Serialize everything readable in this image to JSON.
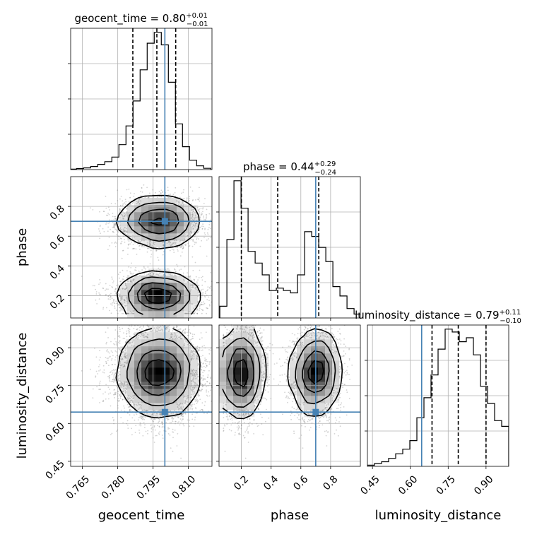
{
  "chart_data": {
    "type": "corner",
    "parameters": [
      "geocent_time",
      "phase",
      "luminosity_distance"
    ],
    "truths": {
      "geocent_time": 0.8,
      "phase": 0.7,
      "luminosity_distance": 0.645
    },
    "axes": {
      "geocent_time": {
        "range": [
          0.76,
          0.82
        ],
        "ticks": [
          "0.765",
          "0.780",
          "0.795",
          "0.810"
        ]
      },
      "phase": {
        "range": [
          0.05,
          1.0
        ],
        "ticks": [
          "0.2",
          "0.4",
          "0.6",
          "0.8"
        ]
      },
      "luminosity_distance": {
        "range": [
          0.43,
          0.99
        ],
        "ticks": [
          "0.45",
          "0.60",
          "0.75",
          "0.90"
        ]
      }
    },
    "titles": [
      {
        "param": "geocent_time",
        "name": "geocent_time",
        "median": "0.80",
        "plus": "+0.01",
        "minus": "−0.01"
      },
      {
        "param": "phase",
        "name": "phase",
        "median": "0.44",
        "plus": "+0.29",
        "minus": "−0.24"
      },
      {
        "param": "luminosity_distance",
        "name": "luminosity_distance",
        "median": "0.79",
        "plus": "+0.11",
        "minus": "−0.10"
      }
    ],
    "histograms": {
      "geocent_time": {
        "bins": [
          0.7595,
          0.7625,
          0.7655,
          0.7685,
          0.7715,
          0.7745,
          0.7775,
          0.7805,
          0.7835,
          0.7865,
          0.7895,
          0.7925,
          0.7955,
          0.7985,
          0.8015,
          0.8045,
          0.8075,
          0.8105,
          0.8135,
          0.8165,
          0.8195
        ],
        "counts": [
          2,
          5,
          8,
          15,
          25,
          38,
          60,
          120,
          210,
          330,
          480,
          608,
          660,
          600,
          420,
          220,
          110,
          45,
          18,
          6
        ],
        "quantiles": [
          0.7864,
          0.7966,
          0.8046
        ]
      },
      "phase": {
        "bins": [
          0.055,
          0.1025,
          0.15,
          0.1975,
          0.245,
          0.2925,
          0.34,
          0.3875,
          0.435,
          0.4825,
          0.53,
          0.5775,
          0.625,
          0.6725,
          0.72,
          0.7675,
          0.815,
          0.8625,
          0.91,
          0.9575,
          1.005
        ],
        "counts": [
          15,
          100,
          175,
          140,
          85,
          70,
          55,
          35,
          38,
          35,
          32,
          55,
          110,
          104,
          90,
          72,
          40,
          28,
          12,
          5
        ],
        "quantiles": [
          0.2,
          0.4444,
          0.7204
        ]
      },
      "luminosity_distance": {
        "bins": [
          0.43,
          0.458,
          0.486,
          0.514,
          0.542,
          0.57,
          0.598,
          0.626,
          0.654,
          0.682,
          0.71,
          0.738,
          0.766,
          0.794,
          0.822,
          0.85,
          0.878,
          0.906,
          0.934,
          0.962,
          0.99
        ],
        "counts": [
          2,
          5,
          8,
          14,
          22,
          30,
          45,
          85,
          120,
          160,
          205,
          240,
          235,
          218,
          225,
          195,
          140,
          110,
          80,
          70
        ],
        "quantiles": [
          0.686,
          0.79,
          0.9
        ]
      }
    },
    "scatter_pairs": [
      {
        "x": "geocent_time",
        "y": "phase"
      },
      {
        "x": "geocent_time",
        "y": "luminosity_distance"
      },
      {
        "x": "phase",
        "y": "luminosity_distance"
      }
    ]
  }
}
